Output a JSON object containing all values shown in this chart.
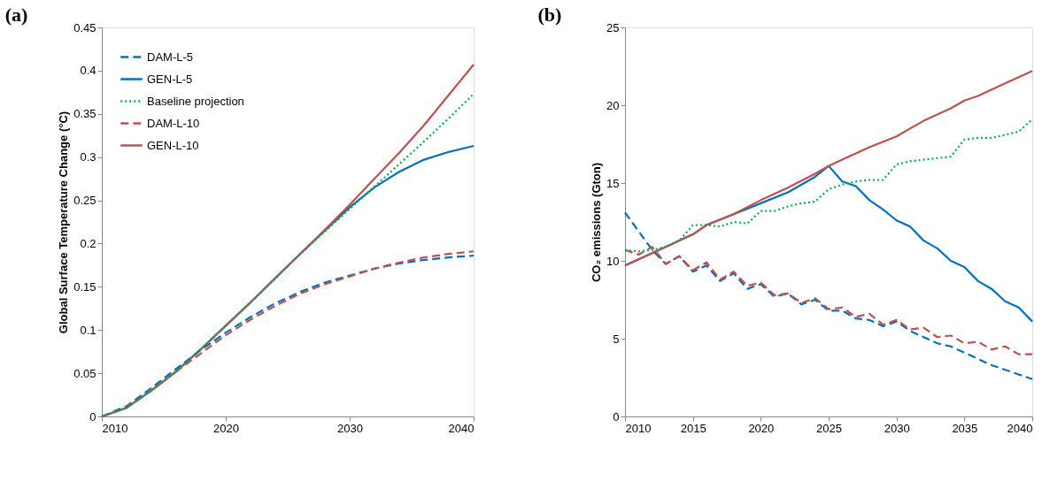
{
  "chart_data": [
    {
      "type": "line",
      "title": "(a)",
      "ylabel": "Global Surface Temperature Change (°C)",
      "x": [
        2010,
        2012,
        2014,
        2016,
        2018,
        2020,
        2022,
        2024,
        2026,
        2028,
        2030,
        2032,
        2034,
        2036,
        2038,
        2040
      ],
      "xlim": [
        2010,
        2040
      ],
      "xticks": [
        2010,
        2020,
        2030,
        2040
      ],
      "ylim": [
        0,
        0.45
      ],
      "yticks": [
        0,
        0.05,
        0.1,
        0.15,
        0.2,
        0.25,
        0.3,
        0.35,
        0.4,
        0.45
      ],
      "grid": false,
      "legend": "top left",
      "series": [
        {
          "name": "DAM-L-5",
          "color": "#0070c0",
          "line_style": "dashed",
          "values": [
            0,
            0.012,
            0.033,
            0.055,
            0.077,
            0.097,
            0.115,
            0.131,
            0.144,
            0.155,
            0.163,
            0.171,
            0.177,
            0.181,
            0.184,
            0.186
          ]
        },
        {
          "name": "GEN-L-5",
          "color": "#0070c0",
          "line_style": "solid",
          "values": [
            0,
            0.01,
            0.03,
            0.052,
            0.078,
            0.105,
            0.132,
            0.16,
            0.188,
            0.215,
            0.242,
            0.265,
            0.283,
            0.297,
            0.306,
            0.313
          ]
        },
        {
          "name": "Baseline projection",
          "color": "#00b050",
          "line_style": "dotted",
          "values": [
            0,
            0.01,
            0.03,
            0.052,
            0.078,
            0.105,
            0.132,
            0.16,
            0.188,
            0.214,
            0.24,
            0.266,
            0.292,
            0.318,
            0.345,
            0.373
          ]
        },
        {
          "name": "DAM-L-10",
          "color": "#c0504d",
          "line_style": "dashed",
          "values": [
            0,
            0.01,
            0.03,
            0.052,
            0.073,
            0.094,
            0.112,
            0.128,
            0.142,
            0.153,
            0.162,
            0.171,
            0.178,
            0.184,
            0.188,
            0.191
          ]
        },
        {
          "name": "GEN-L-10",
          "color": "#c0504d",
          "line_style": "solid",
          "values": [
            0,
            0.01,
            0.03,
            0.052,
            0.078,
            0.105,
            0.132,
            0.16,
            0.188,
            0.216,
            0.245,
            0.275,
            0.305,
            0.337,
            0.372,
            0.407
          ]
        }
      ]
    },
    {
      "type": "line",
      "title": "(b)",
      "ylabel": "CO₂ emissions (Gton)",
      "x": [
        2010,
        2011,
        2012,
        2013,
        2014,
        2015,
        2016,
        2017,
        2018,
        2019,
        2020,
        2021,
        2022,
        2023,
        2024,
        2025,
        2026,
        2027,
        2028,
        2029,
        2030,
        2031,
        2032,
        2033,
        2034,
        2035,
        2036,
        2037,
        2038,
        2039,
        2040
      ],
      "xlim": [
        2010,
        2040
      ],
      "xticks": [
        2010,
        2015,
        2020,
        2025,
        2030,
        2035,
        2040
      ],
      "ylim": [
        0,
        25
      ],
      "yticks": [
        0,
        5,
        10,
        15,
        20,
        25
      ],
      "grid": false,
      "legend": "top left",
      "series": [
        {
          "name": "DAM-L-5",
          "color": "#0070c0",
          "line_style": "dashed",
          "values": [
            13.1,
            11.9,
            10.7,
            9.8,
            10.3,
            9.3,
            9.7,
            8.7,
            9.2,
            8.2,
            8.5,
            7.7,
            7.9,
            7.2,
            7.5,
            6.8,
            6.8,
            6.3,
            6.2,
            5.8,
            6.1,
            5.5,
            5.1,
            4.7,
            4.5,
            4.1,
            3.7,
            3.3,
            3.0,
            2.7,
            2.4
          ]
        },
        {
          "name": "GEN-L-5",
          "color": "#0070c0",
          "line_style": "solid",
          "x": [
            2010,
            2012,
            2014,
            2015,
            2016,
            2018,
            2020,
            2022,
            2024,
            2025,
            2026,
            2027,
            2028,
            2029,
            2030,
            2031,
            2032,
            2033,
            2034,
            2035,
            2036,
            2037,
            2038,
            2039,
            2040
          ],
          "values": [
            9.7,
            10.5,
            11.3,
            11.7,
            12.3,
            13.0,
            13.7,
            14.4,
            15.4,
            16.1,
            15.1,
            14.8,
            13.9,
            13.3,
            12.6,
            12.2,
            11.3,
            10.8,
            10.0,
            9.6,
            8.7,
            8.2,
            7.4,
            7.0,
            6.1
          ]
        },
        {
          "name": "Baseline projection",
          "color": "#00b050",
          "line_style": "dotted",
          "values": [
            10.7,
            10.6,
            10.7,
            10.9,
            11.3,
            12.3,
            12.3,
            12.2,
            12.5,
            12.4,
            13.2,
            13.2,
            13.5,
            13.7,
            13.8,
            14.6,
            14.9,
            15.1,
            15.2,
            15.2,
            16.2,
            16.4,
            16.5,
            16.6,
            16.7,
            17.8,
            17.9,
            17.9,
            18.1,
            18.3,
            19.1
          ]
        },
        {
          "name": "DAM-L-10",
          "color": "#c0504d",
          "line_style": "dashed",
          "values": [
            10.7,
            10.4,
            10.9,
            9.8,
            10.3,
            9.4,
            9.9,
            8.8,
            9.3,
            8.4,
            8.6,
            7.8,
            7.9,
            7.3,
            7.6,
            6.9,
            7.0,
            6.4,
            6.6,
            5.9,
            6.2,
            5.6,
            5.7,
            5.1,
            5.2,
            4.7,
            4.8,
            4.3,
            4.5,
            4.0,
            4.0
          ]
        },
        {
          "name": "GEN-L-10",
          "color": "#c0504d",
          "line_style": "solid",
          "x": [
            2010,
            2012,
            2014,
            2015,
            2016,
            2018,
            2020,
            2022,
            2024,
            2025,
            2026,
            2028,
            2030,
            2032,
            2034,
            2035,
            2036,
            2038,
            2040
          ],
          "values": [
            9.7,
            10.5,
            11.3,
            11.7,
            12.3,
            13.0,
            13.9,
            14.7,
            15.6,
            16.1,
            16.5,
            17.3,
            18.0,
            19.0,
            19.8,
            20.3,
            20.6,
            21.4,
            22.2
          ]
        }
      ]
    }
  ]
}
